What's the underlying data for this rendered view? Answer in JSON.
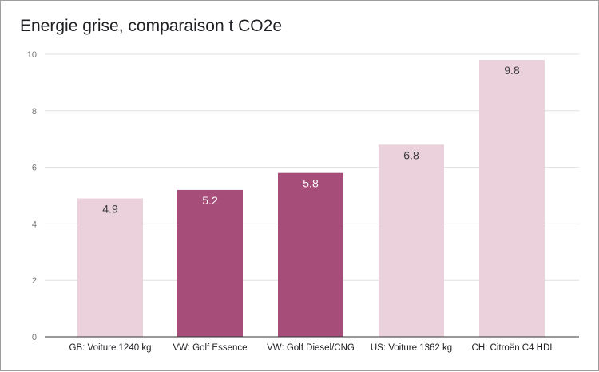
{
  "chart_data": {
    "type": "bar",
    "title": "Energie grise, comparaison t CO2e",
    "xlabel": "",
    "ylabel": "",
    "ylim": [
      0,
      10
    ],
    "yticks": [
      0,
      2,
      4,
      6,
      8,
      10
    ],
    "grid": true,
    "categories": [
      "GB: Voiture 1240 kg",
      "VW: Golf Essence",
      "VW: Golf Diesel/CNG",
      "US: Voiture 1362 kg",
      "CH: Citroën C4 HDI"
    ],
    "values": [
      4.9,
      5.2,
      5.8,
      6.8,
      9.8
    ],
    "data_labels": [
      "4.9",
      "5.2",
      "5.8",
      "6.8",
      "9.8"
    ],
    "bar_colors": [
      "#ead1dc",
      "#a64d79",
      "#a64d79",
      "#ead1dc",
      "#ead1dc"
    ],
    "label_colors": [
      "#3c3c3c",
      "#ffffff",
      "#ffffff",
      "#3c3c3c",
      "#3c3c3c"
    ],
    "colors": {
      "grid": "#e0e0e0",
      "axis": "#333333"
    }
  }
}
